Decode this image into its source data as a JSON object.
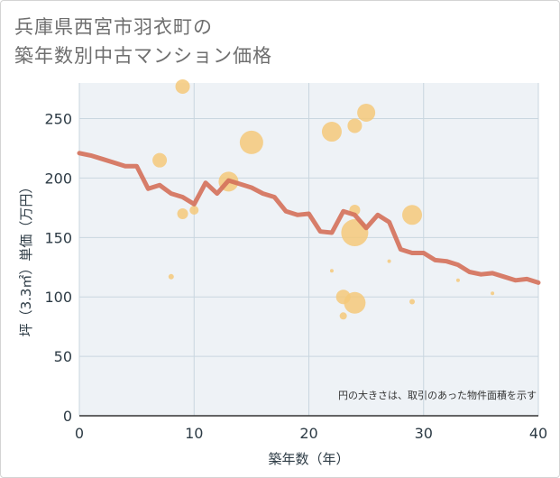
{
  "title": {
    "line1": "兵庫県西宮市羽衣町の",
    "line2": "築年数別中古マンション価格"
  },
  "colors": {
    "bubble": "#f5c97a",
    "line": "#d4705a",
    "grid": "#c9d6df",
    "plot_bg": "#eef2f6"
  },
  "chart_data": {
    "type": "scatter",
    "title": "兵庫県西宮市羽衣町の築年数別中古マンション価格",
    "xlabel": "築年数（年）",
    "ylabel": "坪（3.3㎡）単価（万円）",
    "xlim": [
      0,
      40
    ],
    "ylim": [
      0,
      280
    ],
    "x_ticks": [
      0,
      10,
      20,
      30,
      40
    ],
    "y_ticks": [
      0,
      50,
      100,
      150,
      200,
      250
    ],
    "grid": true,
    "note": "円の大きさは、取引のあった物件面積を示す",
    "bubbles": [
      {
        "x": 8,
        "y": 117,
        "size": 3
      },
      {
        "x": 7,
        "y": 215,
        "size": 8
      },
      {
        "x": 9,
        "y": 277,
        "size": 8
      },
      {
        "x": 9,
        "y": 170,
        "size": 6
      },
      {
        "x": 10,
        "y": 173,
        "size": 5
      },
      {
        "x": 13,
        "y": 197,
        "size": 11
      },
      {
        "x": 15,
        "y": 230,
        "size": 13
      },
      {
        "x": 22,
        "y": 239,
        "size": 11
      },
      {
        "x": 22,
        "y": 122,
        "size": 2
      },
      {
        "x": 23,
        "y": 100,
        "size": 8
      },
      {
        "x": 23,
        "y": 84,
        "size": 4
      },
      {
        "x": 24,
        "y": 244,
        "size": 8
      },
      {
        "x": 24,
        "y": 173,
        "size": 6
      },
      {
        "x": 24,
        "y": 154,
        "size": 15
      },
      {
        "x": 24,
        "y": 95,
        "size": 12
      },
      {
        "x": 25,
        "y": 255,
        "size": 10
      },
      {
        "x": 27,
        "y": 130,
        "size": 2
      },
      {
        "x": 29,
        "y": 169,
        "size": 11
      },
      {
        "x": 29,
        "y": 96,
        "size": 3
      },
      {
        "x": 33,
        "y": 114,
        "size": 2
      },
      {
        "x": 36,
        "y": 103,
        "size": 2
      }
    ],
    "series": [
      {
        "x": [
          0,
          1,
          2,
          3,
          4,
          5,
          6,
          7,
          8,
          9,
          10,
          11,
          12,
          13,
          14,
          15,
          16,
          17,
          18,
          19,
          20,
          21,
          22,
          23,
          24,
          25,
          26,
          27,
          28,
          29,
          30,
          31,
          32,
          33,
          34,
          35,
          36,
          37,
          38,
          39,
          40
        ],
        "y": [
          221,
          219,
          216,
          213,
          210,
          210,
          191,
          194,
          187,
          184,
          178,
          196,
          187,
          198,
          195,
          192,
          187,
          184,
          172,
          169,
          170,
          155,
          154,
          172,
          169,
          158,
          169,
          163,
          140,
          137,
          137,
          131,
          130,
          127,
          121,
          119,
          120,
          117,
          114,
          115,
          112
        ]
      }
    ]
  }
}
